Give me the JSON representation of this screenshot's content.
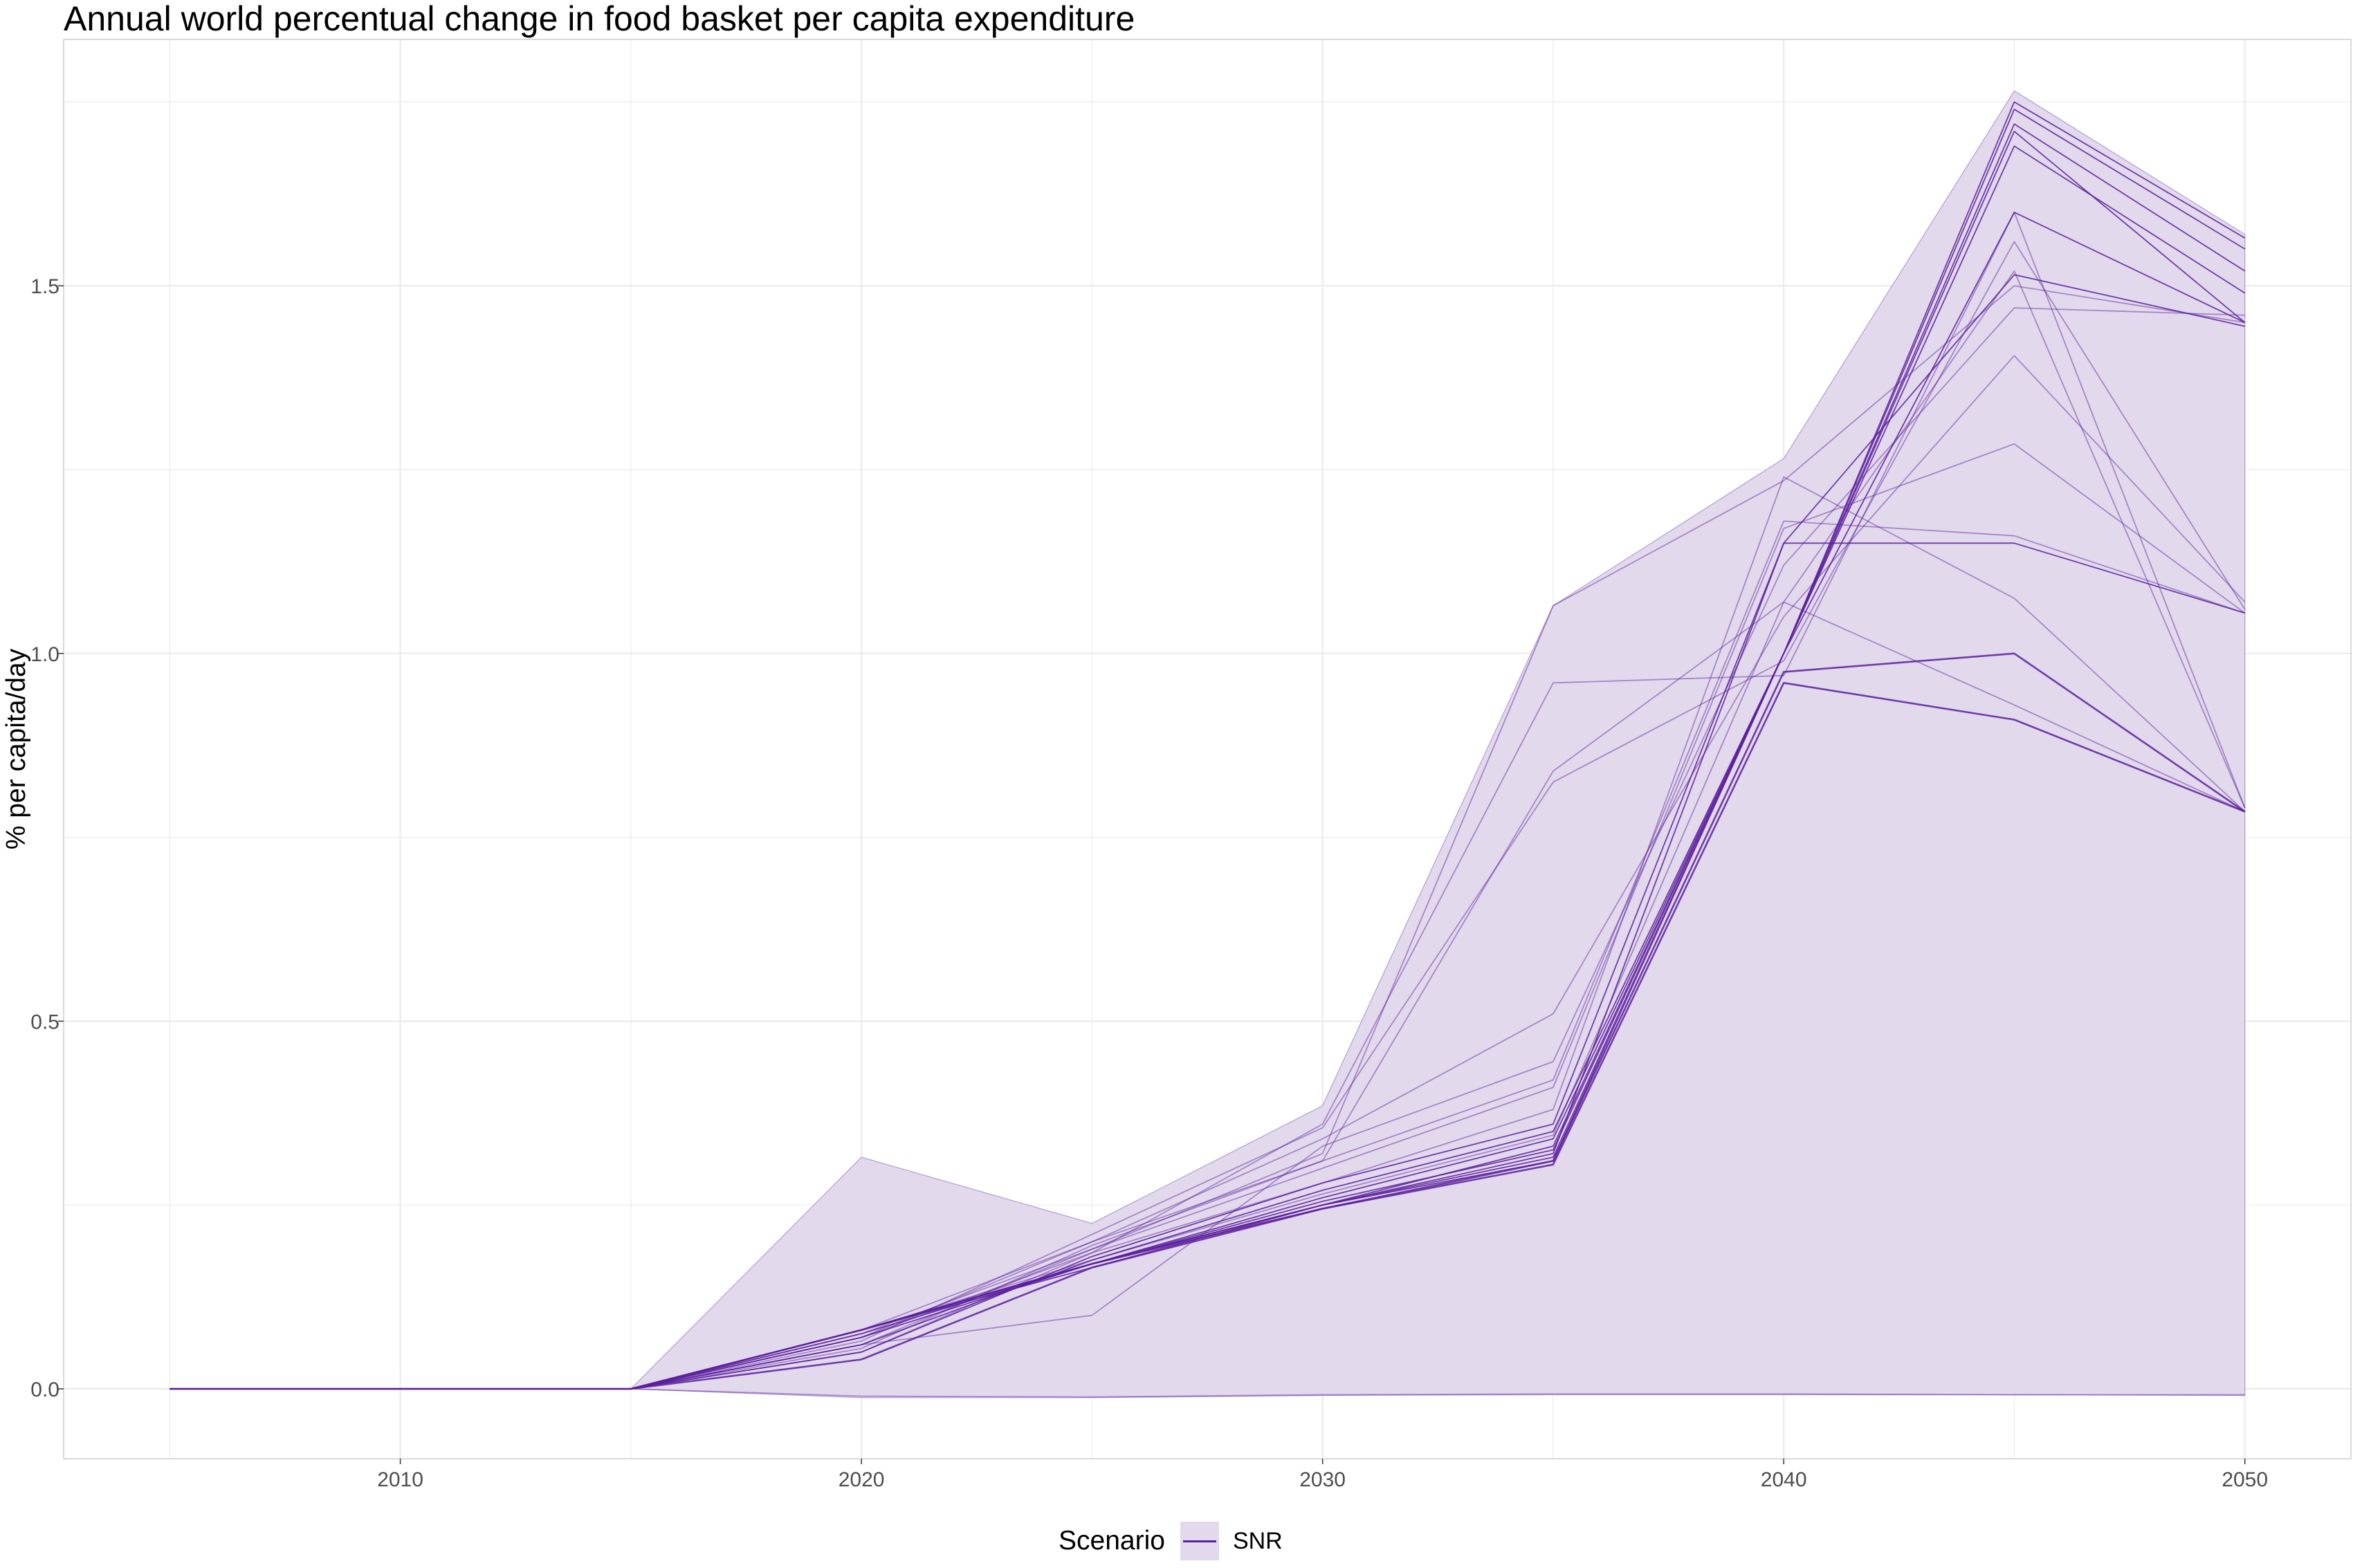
{
  "chart_data": {
    "type": "line",
    "title": "Annual world percentual change in food basket per capita expenditure",
    "xlabel": "",
    "ylabel": "% per capita/day",
    "xlim": [
      2002.7,
      2052.3
    ],
    "ylim": [
      -0.095,
      1.835
    ],
    "x_ticks": [
      2010,
      2020,
      2030,
      2040,
      2050
    ],
    "y_ticks": [
      0.0,
      0.5,
      1.0,
      1.5
    ],
    "y_tick_labels": [
      "0.0",
      "0.5",
      "1.0",
      "1.5"
    ],
    "grid": true,
    "legend_position": "bottom",
    "legend": {
      "title": "Scenario",
      "entries": [
        "SNR"
      ]
    },
    "colors": {
      "line": "#5c1f9e",
      "ribbon": "#e2d9ec",
      "ribbon_edge": "#a888d0",
      "grid": "#ebebeb",
      "panel_border": "#d9d9d9"
    },
    "x": [
      2005,
      2010,
      2015,
      2020,
      2025,
      2030,
      2035,
      2040,
      2045,
      2050
    ],
    "ribbon": {
      "upper": [
        0,
        0,
        0,
        0.315,
        0.225,
        0.385,
        1.065,
        1.265,
        1.765,
        1.57
      ],
      "lower": [
        0,
        0,
        0,
        -0.012,
        -0.012,
        -0.009,
        -0.008,
        -0.008,
        -0.008,
        -0.009
      ]
    },
    "series": [
      {
        "values": [
          0,
          0,
          0,
          0.08,
          0.17,
          0.245,
          0.31,
          0.975,
          1.0,
          0.785
        ]
      },
      {
        "values": [
          0,
          0,
          0,
          0.04,
          0.165,
          0.245,
          0.305,
          0.96,
          0.91,
          0.785
        ]
      },
      {
        "values": [
          0,
          0,
          0,
          0.08,
          0.17,
          0.25,
          0.32,
          1.15,
          1.15,
          1.055
        ]
      },
      {
        "values": [
          0,
          0,
          0,
          0.08,
          0.17,
          0.25,
          0.31,
          1.0,
          1.75,
          1.565
        ]
      },
      {
        "values": [
          0,
          0,
          0,
          0.08,
          0.17,
          0.25,
          0.315,
          1.0,
          1.74,
          1.55
        ]
      },
      {
        "values": [
          0,
          0,
          0,
          0.07,
          0.17,
          0.255,
          0.325,
          1.0,
          1.72,
          1.52
        ]
      },
      {
        "values": [
          0,
          0,
          0,
          0.08,
          0.165,
          0.25,
          0.33,
          1.0,
          1.69,
          1.49
        ]
      },
      {
        "values": [
          0,
          0,
          0,
          0.075,
          0.17,
          0.26,
          0.34,
          1.0,
          1.71,
          1.45
        ]
      },
      {
        "values": [
          0,
          0,
          0,
          0.06,
          0.175,
          0.27,
          0.35,
          1.0,
          1.6,
          1.45
        ]
      },
      {
        "values": [
          0,
          0,
          0,
          0.05,
          0.18,
          0.28,
          0.36,
          1.15,
          1.515,
          1.445
        ]
      },
      {
        "values": [
          0,
          0,
          0,
          0.07,
          0.185,
          0.28,
          0.38,
          1.24,
          1.075,
          0.785
        ]
      },
      {
        "values": [
          0,
          0,
          0,
          0.06,
          0.19,
          0.3,
          0.41,
          1.17,
          1.285,
          1.055
        ]
      },
      {
        "values": [
          0,
          0,
          0,
          0.08,
          0.2,
          0.31,
          0.42,
          1.18,
          1.16,
          1.055
        ]
      },
      {
        "values": [
          0,
          0,
          0,
          0.08,
          0.175,
          0.265,
          0.345,
          1.07,
          0.93,
          0.785
        ]
      },
      {
        "values": [
          0,
          0,
          0,
          0.06,
          0.1,
          0.33,
          0.445,
          1.12,
          1.47,
          1.46
        ]
      },
      {
        "values": [
          0,
          0,
          0,
          0.07,
          0.2,
          0.34,
          0.51,
          1.05,
          1.405,
          1.07
        ]
      },
      {
        "values": [
          0,
          0,
          0,
          0.05,
          0.185,
          0.36,
          0.96,
          0.97,
          1.6,
          0.79
        ]
      },
      {
        "values": [
          0,
          0,
          0,
          0.065,
          0.21,
          0.355,
          0.825,
          0.99,
          1.56,
          1.06
        ]
      },
      {
        "values": [
          0,
          0,
          0,
          0.075,
          0.19,
          0.32,
          1.065,
          1.235,
          1.5,
          1.45
        ]
      },
      {
        "values": [
          0,
          0,
          0,
          0.055,
          0.195,
          0.31,
          0.84,
          1.07,
          1.52,
          0.79
        ]
      },
      {
        "values": [
          0,
          0,
          0,
          -0.01,
          -0.011,
          -0.008,
          -0.007,
          -0.007,
          -0.008,
          -0.008
        ]
      }
    ]
  }
}
